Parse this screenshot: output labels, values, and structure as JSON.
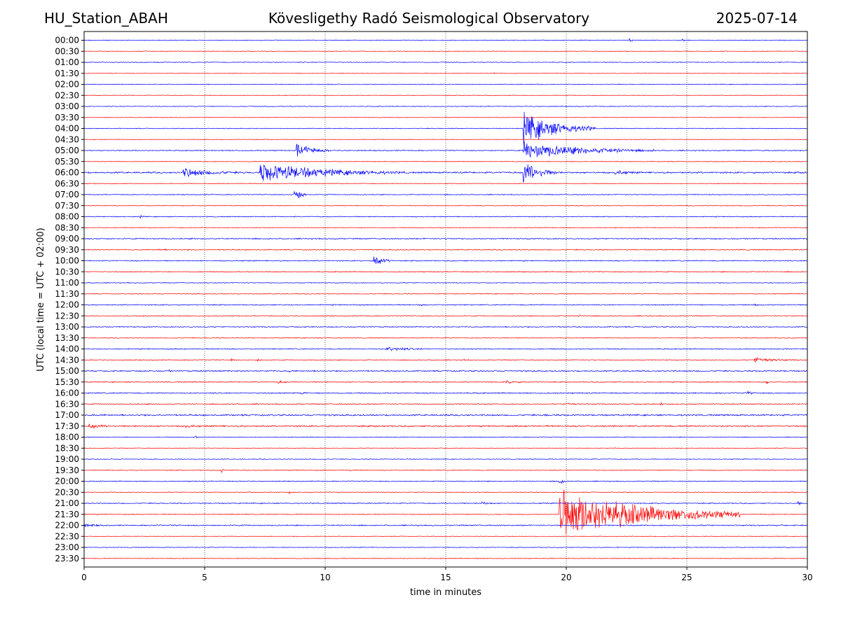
{
  "header": {
    "station": "HU_Station_ABAH",
    "observatory": "Kövesligethy Radó Seismological Observatory",
    "date": "2025-07-14"
  },
  "chart_data": {
    "type": "line",
    "title": "Kövesligethy Radó Seismological Observatory",
    "xlabel": "time in minutes",
    "ylabel": "UTC (local time = UTC + 02:00)",
    "xlim": [
      0,
      30
    ],
    "xticks": [
      "0",
      "5",
      "10",
      "15",
      "20",
      "25",
      "30"
    ],
    "grid": "vertical dotted at x ticks",
    "row_colors": [
      "#0000ff",
      "#ff0000"
    ],
    "rows": [
      {
        "label": "00:00",
        "color": "#0000ff",
        "amp": 0.6,
        "events": [
          {
            "t": 22.6,
            "a": 4,
            "d": 0.3
          },
          {
            "t": 24.8,
            "a": 2.5,
            "d": 0.3
          }
        ]
      },
      {
        "label": "00:30",
        "color": "#ff0000",
        "amp": 0.5,
        "events": []
      },
      {
        "label": "01:00",
        "color": "#0000ff",
        "amp": 0.6,
        "events": []
      },
      {
        "label": "01:30",
        "color": "#ff0000",
        "amp": 0.5,
        "events": [
          {
            "t": 17.0,
            "a": 2,
            "d": 0.2
          }
        ]
      },
      {
        "label": "02:00",
        "color": "#0000ff",
        "amp": 0.6,
        "events": []
      },
      {
        "label": "02:30",
        "color": "#ff0000",
        "amp": 0.5,
        "events": []
      },
      {
        "label": "03:00",
        "color": "#0000ff",
        "amp": 0.6,
        "events": []
      },
      {
        "label": "03:30",
        "color": "#ff0000",
        "amp": 0.5,
        "events": []
      },
      {
        "label": "04:00",
        "color": "#0000ff",
        "amp": 0.6,
        "events": [
          {
            "t": 18.2,
            "a": 26,
            "d": 3.0
          }
        ]
      },
      {
        "label": "04:30",
        "color": "#ff0000",
        "amp": 0.5,
        "events": []
      },
      {
        "label": "05:00",
        "color": "#0000ff",
        "amp": 0.8,
        "events": [
          {
            "t": 18.2,
            "a": 14,
            "d": 5.5
          },
          {
            "t": 8.8,
            "a": 12,
            "d": 1.5
          }
        ]
      },
      {
        "label": "05:30",
        "color": "#ff0000",
        "amp": 0.6,
        "events": []
      },
      {
        "label": "06:00",
        "color": "#0000ff",
        "amp": 1.2,
        "events": [
          {
            "t": 4.1,
            "a": 8,
            "d": 3.0
          },
          {
            "t": 7.3,
            "a": 16,
            "d": 6.0
          },
          {
            "t": 18.2,
            "a": 20,
            "d": 1.5
          },
          {
            "t": 22.0,
            "a": 4,
            "d": 2.0
          }
        ]
      },
      {
        "label": "06:30",
        "color": "#ff0000",
        "amp": 0.6,
        "events": []
      },
      {
        "label": "07:00",
        "color": "#0000ff",
        "amp": 0.7,
        "events": [
          {
            "t": 8.7,
            "a": 14,
            "d": 0.6
          }
        ]
      },
      {
        "label": "07:30",
        "color": "#ff0000",
        "amp": 0.6,
        "events": []
      },
      {
        "label": "08:00",
        "color": "#0000ff",
        "amp": 0.7,
        "events": [
          {
            "t": 2.3,
            "a": 2.5,
            "d": 0.5
          }
        ]
      },
      {
        "label": "08:30",
        "color": "#ff0000",
        "amp": 0.6,
        "events": []
      },
      {
        "label": "09:00",
        "color": "#0000ff",
        "amp": 0.9,
        "events": []
      },
      {
        "label": "09:30",
        "color": "#ff0000",
        "amp": 0.8,
        "events": [
          {
            "t": 3.0,
            "a": 2,
            "d": 1.5
          }
        ]
      },
      {
        "label": "10:00",
        "color": "#0000ff",
        "amp": 0.8,
        "events": [
          {
            "t": 12.0,
            "a": 12,
            "d": 0.8
          }
        ]
      },
      {
        "label": "10:30",
        "color": "#ff0000",
        "amp": 0.8,
        "events": []
      },
      {
        "label": "11:00",
        "color": "#0000ff",
        "amp": 0.6,
        "events": []
      },
      {
        "label": "11:30",
        "color": "#ff0000",
        "amp": 0.6,
        "events": []
      },
      {
        "label": "12:00",
        "color": "#0000ff",
        "amp": 0.8,
        "events": [
          {
            "t": 13.9,
            "a": 3,
            "d": 0.4
          },
          {
            "t": 27.8,
            "a": 2.5,
            "d": 0.4
          }
        ]
      },
      {
        "label": "12:30",
        "color": "#ff0000",
        "amp": 0.7,
        "events": [
          {
            "t": 20.5,
            "a": 2,
            "d": 1.0
          }
        ]
      },
      {
        "label": "13:00",
        "color": "#0000ff",
        "amp": 0.8,
        "events": []
      },
      {
        "label": "13:30",
        "color": "#ff0000",
        "amp": 0.6,
        "events": []
      },
      {
        "label": "14:00",
        "color": "#0000ff",
        "amp": 0.8,
        "events": [
          {
            "t": 12.5,
            "a": 3.5,
            "d": 2.8
          }
        ]
      },
      {
        "label": "14:30",
        "color": "#ff0000",
        "amp": 0.7,
        "events": [
          {
            "t": 6.1,
            "a": 3.5,
            "d": 0.3
          },
          {
            "t": 7.2,
            "a": 3,
            "d": 0.3
          },
          {
            "t": 15.7,
            "a": 3,
            "d": 0.3
          },
          {
            "t": 27.8,
            "a": 5,
            "d": 2.2
          }
        ]
      },
      {
        "label": "15:00",
        "color": "#0000ff",
        "amp": 1.0,
        "events": [
          {
            "t": 3.5,
            "a": 3,
            "d": 0.3
          },
          {
            "t": 8.5,
            "a": 2.5,
            "d": 0.3
          }
        ]
      },
      {
        "label": "15:30",
        "color": "#ff0000",
        "amp": 0.8,
        "events": [
          {
            "t": 8.0,
            "a": 3,
            "d": 1.0
          },
          {
            "t": 17.5,
            "a": 3,
            "d": 1.5
          },
          {
            "t": 28.3,
            "a": 4,
            "d": 0.2
          }
        ]
      },
      {
        "label": "16:00",
        "color": "#0000ff",
        "amp": 0.9,
        "events": [
          {
            "t": 9.0,
            "a": 3,
            "d": 0.8
          },
          {
            "t": 27.5,
            "a": 3,
            "d": 0.8
          }
        ]
      },
      {
        "label": "16:30",
        "color": "#ff0000",
        "amp": 0.8,
        "events": [
          {
            "t": 20.0,
            "a": 3,
            "d": 1.0
          },
          {
            "t": 23.9,
            "a": 4,
            "d": 0.3
          }
        ]
      },
      {
        "label": "17:00",
        "color": "#0000ff",
        "amp": 1.2,
        "events": [
          {
            "t": 19.1,
            "a": 3.5,
            "d": 0.3
          }
        ]
      },
      {
        "label": "17:30",
        "color": "#ff0000",
        "amp": 1.2,
        "events": [
          {
            "t": 0.2,
            "a": 4,
            "d": 2.0
          },
          {
            "t": 4.2,
            "a": 4,
            "d": 1.0
          }
        ]
      },
      {
        "label": "18:00",
        "color": "#0000ff",
        "amp": 0.6,
        "events": [
          {
            "t": 4.6,
            "a": 2.5,
            "d": 0.3
          }
        ]
      },
      {
        "label": "18:30",
        "color": "#ff0000",
        "amp": 0.5,
        "events": []
      },
      {
        "label": "19:00",
        "color": "#0000ff",
        "amp": 0.6,
        "events": []
      },
      {
        "label": "19:30",
        "color": "#ff0000",
        "amp": 0.7,
        "events": [
          {
            "t": 5.7,
            "a": 4,
            "d": 0.3
          },
          {
            "t": 11.0,
            "a": 3,
            "d": 0.3
          }
        ]
      },
      {
        "label": "20:00",
        "color": "#0000ff",
        "amp": 0.7,
        "events": [
          {
            "t": 19.7,
            "a": 10,
            "d": 0.3
          }
        ]
      },
      {
        "label": "20:30",
        "color": "#ff0000",
        "amp": 0.6,
        "events": [
          {
            "t": 8.5,
            "a": 2,
            "d": 0.5
          }
        ]
      },
      {
        "label": "21:00",
        "color": "#0000ff",
        "amp": 0.8,
        "events": [
          {
            "t": 16.5,
            "a": 3,
            "d": 1.0
          },
          {
            "t": 29.6,
            "a": 4,
            "d": 0.4
          }
        ]
      },
      {
        "label": "21:30",
        "color": "#ff0000",
        "amp": 0.7,
        "events": [
          {
            "t": 19.7,
            "a": 40,
            "d": 7.5
          },
          {
            "t": 23.0,
            "a": 12,
            "d": 0.4
          }
        ]
      },
      {
        "label": "22:00",
        "color": "#0000ff",
        "amp": 0.9,
        "events": [
          {
            "t": 0.0,
            "a": 3,
            "d": 1.5
          }
        ]
      },
      {
        "label": "22:30",
        "color": "#ff0000",
        "amp": 0.5,
        "events": []
      },
      {
        "label": "23:00",
        "color": "#0000ff",
        "amp": 0.6,
        "events": []
      },
      {
        "label": "23:30",
        "color": "#ff0000",
        "amp": 0.6,
        "events": []
      }
    ]
  }
}
